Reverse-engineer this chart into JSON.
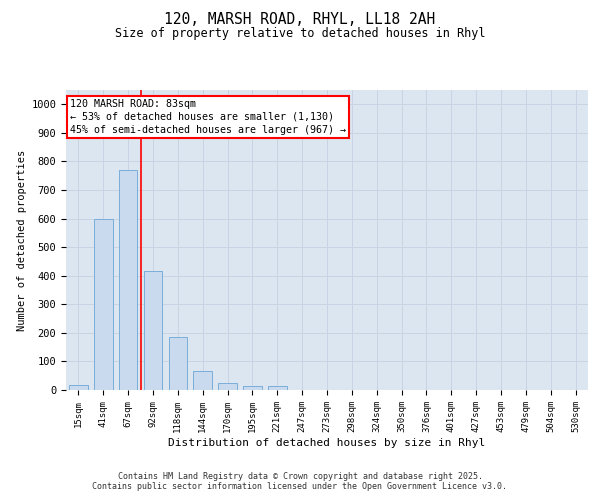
{
  "title_line1": "120, MARSH ROAD, RHYL, LL18 2AH",
  "title_line2": "Size of property relative to detached houses in Rhyl",
  "xlabel": "Distribution of detached houses by size in Rhyl",
  "ylabel": "Number of detached properties",
  "bar_labels": [
    "15sqm",
    "41sqm",
    "67sqm",
    "92sqm",
    "118sqm",
    "144sqm",
    "170sqm",
    "195sqm",
    "221sqm",
    "247sqm",
    "273sqm",
    "298sqm",
    "324sqm",
    "350sqm",
    "376sqm",
    "401sqm",
    "427sqm",
    "453sqm",
    "479sqm",
    "504sqm",
    "530sqm"
  ],
  "bar_values": [
    18,
    600,
    770,
    415,
    185,
    65,
    25,
    13,
    13,
    0,
    0,
    0,
    0,
    0,
    0,
    0,
    0,
    0,
    0,
    0,
    0
  ],
  "bar_color": "#c9d9ee",
  "bar_edge_color": "#7aadda",
  "grid_color": "#c8d4e3",
  "background_color": "#dce6f1",
  "ylim": [
    0,
    1050
  ],
  "yticks": [
    0,
    100,
    200,
    300,
    400,
    500,
    600,
    700,
    800,
    900,
    1000
  ],
  "annotation_text": "120 MARSH ROAD: 83sqm\n← 53% of detached houses are smaller (1,130)\n45% of semi-detached houses are larger (967) →",
  "vline_bar_index": 3,
  "footer_line1": "Contains HM Land Registry data © Crown copyright and database right 2025.",
  "footer_line2": "Contains public sector information licensed under the Open Government Licence v3.0."
}
